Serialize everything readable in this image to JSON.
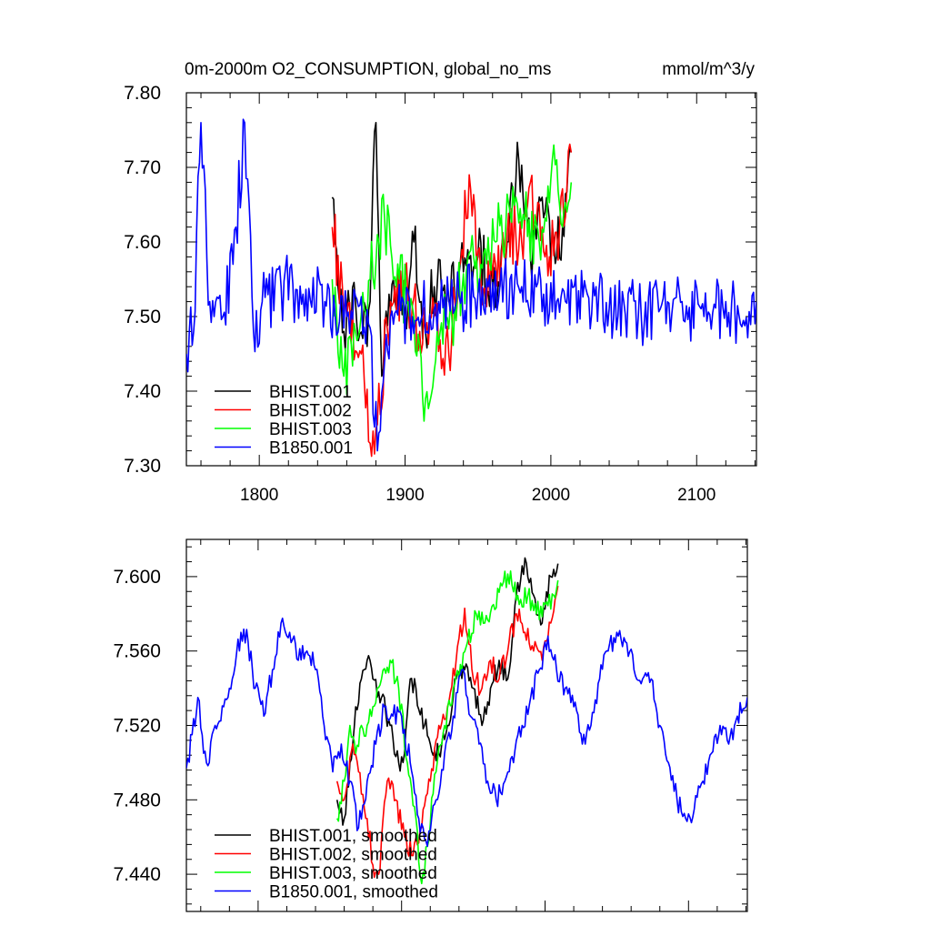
{
  "figure": {
    "title_left": "0m-2000m O2_CONSUMPTION, global_no_ms",
    "title_right": "mmol/m^3/y"
  },
  "chart_data": [
    {
      "type": "line",
      "title": "0m-2000m O2_CONSUMPTION, global_no_ms",
      "units": "mmol/m^3/y",
      "xlabel": "",
      "ylabel": "",
      "xlim": [
        1750,
        2141
      ],
      "ylim": [
        7.3,
        7.8
      ],
      "xticks": [
        1800,
        1900,
        2000,
        2100
      ],
      "xtick_labels": [
        "1800",
        "1900",
        "2000",
        "2100"
      ],
      "yticks": [
        7.3,
        7.4,
        7.5,
        7.6,
        7.7,
        7.8
      ],
      "ytick_labels": [
        "7.30",
        "7.40",
        "7.50",
        "7.60",
        "7.70",
        "7.80"
      ],
      "legend_position": "bottom-left",
      "series": [
        {
          "name": "BHIST.001",
          "color": "#000000",
          "x_start": 1850,
          "x_end": 2014,
          "anchors": [
            [
              1850,
              7.66
            ],
            [
              1858,
              7.48
            ],
            [
              1866,
              7.52
            ],
            [
              1874,
              7.46
            ],
            [
              1880,
              7.76
            ],
            [
              1884,
              7.42
            ],
            [
              1892,
              7.55
            ],
            [
              1900,
              7.51
            ],
            [
              1906,
              7.6
            ],
            [
              1912,
              7.47
            ],
            [
              1920,
              7.54
            ],
            [
              1930,
              7.52
            ],
            [
              1940,
              7.56
            ],
            [
              1950,
              7.58
            ],
            [
              1960,
              7.54
            ],
            [
              1970,
              7.6
            ],
            [
              1978,
              7.71
            ],
            [
              1986,
              7.58
            ],
            [
              1994,
              7.66
            ],
            [
              2002,
              7.6
            ],
            [
              2008,
              7.62
            ],
            [
              2014,
              7.72
            ]
          ]
        },
        {
          "name": "BHIST.002",
          "color": "#ff0000",
          "x_start": 1850,
          "x_end": 2014,
          "anchors": [
            [
              1850,
              7.62
            ],
            [
              1860,
              7.5
            ],
            [
              1870,
              7.45
            ],
            [
              1876,
              7.33
            ],
            [
              1880,
              7.35
            ],
            [
              1890,
              7.52
            ],
            [
              1900,
              7.55
            ],
            [
              1910,
              7.48
            ],
            [
              1920,
              7.5
            ],
            [
              1930,
              7.45
            ],
            [
              1944,
              7.69
            ],
            [
              1952,
              7.55
            ],
            [
              1962,
              7.57
            ],
            [
              1970,
              7.61
            ],
            [
              1980,
              7.6
            ],
            [
              1986,
              7.68
            ],
            [
              1996,
              7.58
            ],
            [
              2006,
              7.62
            ],
            [
              2014,
              7.72
            ]
          ]
        },
        {
          "name": "BHIST.003",
          "color": "#00ff00",
          "x_start": 1850,
          "x_end": 2014,
          "anchors": [
            [
              1850,
              7.55
            ],
            [
              1858,
              7.42
            ],
            [
              1866,
              7.48
            ],
            [
              1876,
              7.55
            ],
            [
              1886,
              7.63
            ],
            [
              1896,
              7.55
            ],
            [
              1906,
              7.5
            ],
            [
              1914,
              7.39
            ],
            [
              1922,
              7.48
            ],
            [
              1932,
              7.5
            ],
            [
              1942,
              7.56
            ],
            [
              1952,
              7.57
            ],
            [
              1962,
              7.6
            ],
            [
              1972,
              7.64
            ],
            [
              1982,
              7.63
            ],
            [
              1992,
              7.6
            ],
            [
              2002,
              7.73
            ],
            [
              2008,
              7.62
            ],
            [
              2014,
              7.68
            ]
          ]
        },
        {
          "name": "B1850.001",
          "color": "#0000ff",
          "x_start": 1750,
          "x_end": 2141,
          "anchors": [
            [
              1750,
              7.45
            ],
            [
              1755,
              7.48
            ],
            [
              1760,
              7.76
            ],
            [
              1766,
              7.52
            ],
            [
              1775,
              7.5
            ],
            [
              1782,
              7.57
            ],
            [
              1790,
              7.76
            ],
            [
              1796,
              7.48
            ],
            [
              1802,
              7.52
            ],
            [
              1815,
              7.54
            ],
            [
              1830,
              7.53
            ],
            [
              1845,
              7.52
            ],
            [
              1860,
              7.5
            ],
            [
              1875,
              7.49
            ],
            [
              1881,
              7.32
            ],
            [
              1890,
              7.5
            ],
            [
              1905,
              7.5
            ],
            [
              1920,
              7.51
            ],
            [
              1935,
              7.52
            ],
            [
              1950,
              7.53
            ],
            [
              1965,
              7.54
            ],
            [
              1980,
              7.54
            ],
            [
              1995,
              7.53
            ],
            [
              2010,
              7.52
            ],
            [
              2025,
              7.53
            ],
            [
              2040,
              7.51
            ],
            [
              2050,
              7.52
            ],
            [
              2060,
              7.5
            ],
            [
              2075,
              7.51
            ],
            [
              2090,
              7.52
            ],
            [
              2105,
              7.5
            ],
            [
              2120,
              7.52
            ],
            [
              2130,
              7.49
            ],
            [
              2141,
              7.52
            ]
          ]
        }
      ]
    },
    {
      "type": "line",
      "title": "",
      "xlabel": "",
      "ylabel": "",
      "xlim": [
        1750,
        2141
      ],
      "ylim": [
        7.42,
        7.62
      ],
      "xticks": [
        1800,
        1900,
        2000,
        2100
      ],
      "xtick_labels": [],
      "yticks": [
        7.44,
        7.48,
        7.52,
        7.56,
        7.6
      ],
      "ytick_labels": [
        "7.440",
        "7.480",
        "7.520",
        "7.560",
        "7.600"
      ],
      "legend_position": "bottom-left",
      "series": [
        {
          "name": "BHIST.001, smoothed",
          "color": "#000000",
          "x_start": 1855,
          "x_end": 2009,
          "anchors": [
            [
              1855,
              7.48
            ],
            [
              1860,
              7.47
            ],
            [
              1864,
              7.5
            ],
            [
              1868,
              7.53
            ],
            [
              1872,
              7.545
            ],
            [
              1876,
              7.555
            ],
            [
              1880,
              7.545
            ],
            [
              1886,
              7.535
            ],
            [
              1892,
              7.52
            ],
            [
              1898,
              7.5
            ],
            [
              1902,
              7.505
            ],
            [
              1906,
              7.545
            ],
            [
              1910,
              7.54
            ],
            [
              1916,
              7.52
            ],
            [
              1920,
              7.51
            ],
            [
              1926,
              7.505
            ],
            [
              1932,
              7.52
            ],
            [
              1938,
              7.545
            ],
            [
              1944,
              7.55
            ],
            [
              1950,
              7.54
            ],
            [
              1956,
              7.52
            ],
            [
              1962,
              7.54
            ],
            [
              1968,
              7.555
            ],
            [
              1974,
              7.545
            ],
            [
              1980,
              7.59
            ],
            [
              1986,
              7.61
            ],
            [
              1992,
              7.59
            ],
            [
              1998,
              7.575
            ],
            [
              2004,
              7.6
            ],
            [
              2009,
              7.607
            ]
          ]
        },
        {
          "name": "BHIST.002, smoothed",
          "color": "#ff0000",
          "x_start": 1855,
          "x_end": 2009,
          "anchors": [
            [
              1855,
              7.49
            ],
            [
              1860,
              7.48
            ],
            [
              1866,
              7.51
            ],
            [
              1870,
              7.495
            ],
            [
              1876,
              7.47
            ],
            [
              1880,
              7.445
            ],
            [
              1884,
              7.44
            ],
            [
              1890,
              7.49
            ],
            [
              1896,
              7.48
            ],
            [
              1902,
              7.46
            ],
            [
              1908,
              7.45
            ],
            [
              1914,
              7.465
            ],
            [
              1920,
              7.49
            ],
            [
              1926,
              7.52
            ],
            [
              1932,
              7.53
            ],
            [
              1938,
              7.555
            ],
            [
              1944,
              7.583
            ],
            [
              1950,
              7.545
            ],
            [
              1956,
              7.54
            ],
            [
              1962,
              7.555
            ],
            [
              1968,
              7.545
            ],
            [
              1974,
              7.56
            ],
            [
              1980,
              7.58
            ],
            [
              1986,
              7.57
            ],
            [
              1992,
              7.56
            ],
            [
              1998,
              7.555
            ],
            [
              2004,
              7.575
            ],
            [
              2009,
              7.595
            ]
          ]
        },
        {
          "name": "BHIST.003, smoothed",
          "color": "#00ff00",
          "x_start": 1855,
          "x_end": 2009,
          "anchors": [
            [
              1855,
              7.47
            ],
            [
              1860,
              7.49
            ],
            [
              1864,
              7.52
            ],
            [
              1868,
              7.505
            ],
            [
              1872,
              7.52
            ],
            [
              1876,
              7.52
            ],
            [
              1880,
              7.53
            ],
            [
              1886,
              7.545
            ],
            [
              1892,
              7.555
            ],
            [
              1898,
              7.54
            ],
            [
              1904,
              7.5
            ],
            [
              1910,
              7.47
            ],
            [
              1914,
              7.435
            ],
            [
              1918,
              7.455
            ],
            [
              1924,
              7.495
            ],
            [
              1930,
              7.52
            ],
            [
              1936,
              7.54
            ],
            [
              1940,
              7.545
            ],
            [
              1946,
              7.565
            ],
            [
              1952,
              7.58
            ],
            [
              1958,
              7.575
            ],
            [
              1964,
              7.585
            ],
            [
              1970,
              7.595
            ],
            [
              1976,
              7.603
            ],
            [
              1982,
              7.585
            ],
            [
              1988,
              7.59
            ],
            [
              1994,
              7.58
            ],
            [
              2000,
              7.585
            ],
            [
              2006,
              7.59
            ],
            [
              2009,
              7.598
            ]
          ]
        },
        {
          "name": "B1850.001, smoothed",
          "color": "#0000ff",
          "x_start": 1750,
          "x_end": 2141,
          "anchors": [
            [
              1750,
              7.497
            ],
            [
              1754,
              7.515
            ],
            [
              1758,
              7.535
            ],
            [
              1762,
              7.505
            ],
            [
              1766,
              7.5
            ],
            [
              1770,
              7.52
            ],
            [
              1776,
              7.53
            ],
            [
              1782,
              7.545
            ],
            [
              1788,
              7.57
            ],
            [
              1793,
              7.565
            ],
            [
              1798,
              7.54
            ],
            [
              1804,
              7.525
            ],
            [
              1810,
              7.55
            ],
            [
              1816,
              7.575
            ],
            [
              1822,
              7.57
            ],
            [
              1828,
              7.555
            ],
            [
              1834,
              7.56
            ],
            [
              1840,
              7.55
            ],
            [
              1846,
              7.52
            ],
            [
              1852,
              7.495
            ],
            [
              1858,
              7.51
            ],
            [
              1864,
              7.49
            ],
            [
              1870,
              7.465
            ],
            [
              1876,
              7.49
            ],
            [
              1882,
              7.51
            ],
            [
              1888,
              7.53
            ],
            [
              1894,
              7.525
            ],
            [
              1900,
              7.525
            ],
            [
              1906,
              7.5
            ],
            [
              1912,
              7.47
            ],
            [
              1918,
              7.455
            ],
            [
              1924,
              7.48
            ],
            [
              1930,
              7.505
            ],
            [
              1936,
              7.525
            ],
            [
              1942,
              7.55
            ],
            [
              1948,
              7.525
            ],
            [
              1954,
              7.51
            ],
            [
              1960,
              7.49
            ],
            [
              1966,
              7.48
            ],
            [
              1972,
              7.49
            ],
            [
              1978,
              7.5
            ],
            [
              1984,
              7.52
            ],
            [
              1990,
              7.535
            ],
            [
              1996,
              7.55
            ],
            [
              2002,
              7.568
            ],
            [
              2008,
              7.55
            ],
            [
              2014,
              7.54
            ],
            [
              2020,
              7.53
            ],
            [
              2026,
              7.51
            ],
            [
              2032,
              7.52
            ],
            [
              2038,
              7.545
            ],
            [
              2044,
              7.56
            ],
            [
              2050,
              7.57
            ],
            [
              2056,
              7.565
            ],
            [
              2062,
              7.55
            ],
            [
              2068,
              7.545
            ],
            [
              2074,
              7.545
            ],
            [
              2080,
              7.52
            ],
            [
              2086,
              7.5
            ],
            [
              2092,
              7.48
            ],
            [
              2098,
              7.47
            ],
            [
              2104,
              7.475
            ],
            [
              2110,
              7.49
            ],
            [
              2116,
              7.505
            ],
            [
              2122,
              7.52
            ],
            [
              2128,
              7.51
            ],
            [
              2134,
              7.525
            ],
            [
              2140,
              7.53
            ]
          ]
        }
      ]
    }
  ]
}
